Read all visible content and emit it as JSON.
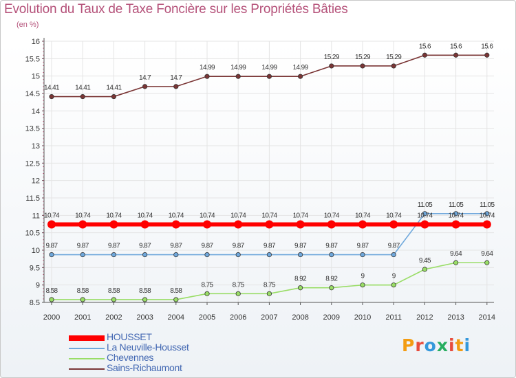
{
  "chart_data": {
    "type": "line",
    "title": "Evolution du Taux de Taxe Foncière sur les Propriétés Bâties",
    "ylabel": "(en %)",
    "categories": [
      "2000",
      "2001",
      "2002",
      "2003",
      "2004",
      "2005",
      "2006",
      "2007",
      "2008",
      "2009",
      "2010",
      "2011",
      "2012",
      "2013",
      "2014"
    ],
    "ylim": [
      8.5,
      16
    ],
    "yticks": [
      "8.5",
      "9",
      "9.5",
      "10",
      "10.5",
      "11",
      "11.5",
      "12",
      "12.5",
      "13",
      "13.5",
      "14",
      "14.5",
      "15",
      "15.5",
      "16"
    ],
    "series": [
      {
        "name": "HOUSSET",
        "color": "#ff0000",
        "values": [
          10.74,
          10.74,
          10.74,
          10.74,
          10.74,
          10.74,
          10.74,
          10.74,
          10.74,
          10.74,
          10.74,
          10.74,
          10.74,
          10.74,
          10.74
        ],
        "labels": [
          "10.74",
          "10.74",
          "10.74",
          "10.74",
          "10.74",
          "10.74",
          "10.74",
          "10.74",
          "10.74",
          "10.74",
          "10.74",
          "10.74",
          "10.74",
          "10.74",
          "10.74"
        ]
      },
      {
        "name": "La Neuville-Housset",
        "color": "#6fa8dc",
        "values": [
          9.87,
          9.87,
          9.87,
          9.87,
          9.87,
          9.87,
          9.87,
          9.87,
          9.87,
          9.87,
          9.87,
          9.87,
          11.05,
          11.05,
          11.05
        ],
        "labels": [
          "9.87",
          "9.87",
          "9.87",
          "9.87",
          "9.87",
          "9.87",
          "9.87",
          "9.87",
          "9.87",
          "9.87",
          "9.87",
          "9.87",
          "11.05",
          "11.05",
          "11.05"
        ]
      },
      {
        "name": "Chevennes",
        "color": "#99dd66",
        "values": [
          8.58,
          8.58,
          8.58,
          8.58,
          8.58,
          8.75,
          8.75,
          8.75,
          8.92,
          8.92,
          9,
          9,
          9.45,
          9.64,
          9.64
        ],
        "labels": [
          "8.58",
          "8.58",
          "8.58",
          "8.58",
          "8.58",
          "8.75",
          "8.75",
          "8.75",
          "8.92",
          "8.92",
          "9",
          "9",
          "9.45",
          "9.64",
          "9.64"
        ]
      },
      {
        "name": "Sains-Richaumont",
        "color": "#7a3535",
        "values": [
          14.41,
          14.41,
          14.41,
          14.7,
          14.7,
          14.99,
          14.99,
          14.99,
          14.99,
          15.29,
          15.29,
          15.29,
          15.6,
          15.6,
          15.6
        ],
        "labels": [
          "14.41",
          "14.41",
          "14.41",
          "14.7",
          "14.7",
          "14.99",
          "14.99",
          "14.99",
          "14.99",
          "15.29",
          "15.29",
          "15.29",
          "15.6",
          "15.6",
          "15.6"
        ]
      }
    ],
    "legend_position": "bottom-left"
  },
  "logo": {
    "text": "Proxiti",
    "letters": [
      "P",
      "r",
      "o",
      "x",
      "i",
      "t",
      "i"
    ]
  },
  "colors": {
    "title": "#b5527a",
    "legend_text": "#4267b2"
  }
}
